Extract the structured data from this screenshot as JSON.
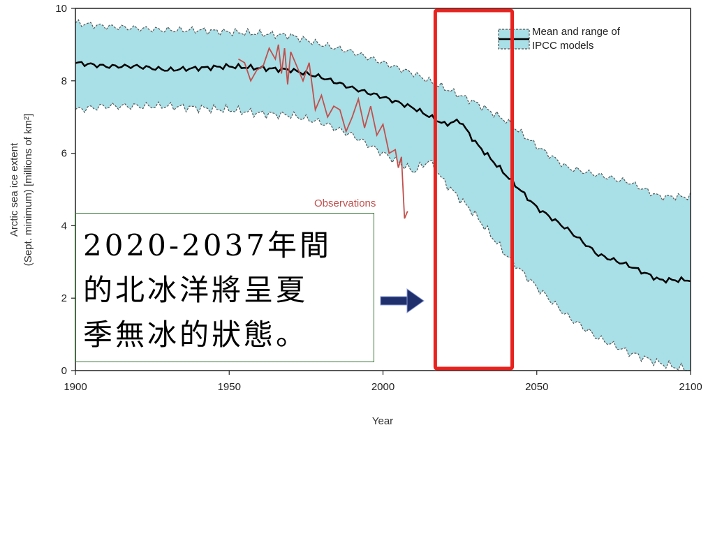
{
  "chart_data": {
    "type": "line",
    "ylabel_line1": "Arctic sea ice extent",
    "ylabel_line2": "(Sept. minimum) [millions of km²]",
    "xlabel": "Year",
    "xlim": [
      1900,
      2100
    ],
    "ylim": [
      0,
      10
    ],
    "x_ticks": [
      "1900",
      "1950",
      "2000",
      "2050",
      "2100"
    ],
    "y_ticks": [
      "0",
      "2",
      "4",
      "6",
      "8",
      "10"
    ],
    "legend": {
      "label_line1": "Mean and range of",
      "label_line2": "IPCC models",
      "position": "top-right"
    },
    "observations_label": "Observations",
    "highlight_range_years": [
      2017,
      2042
    ],
    "series": [
      {
        "name": "Mean and range of IPCC models",
        "role": "model-mean",
        "x": [
          1900,
          1910,
          1920,
          1930,
          1940,
          1950,
          1960,
          1970,
          1980,
          1990,
          2000,
          2010,
          2020,
          2025,
          2030,
          2040,
          2050,
          2060,
          2070,
          2080,
          2090,
          2095,
          2100
        ],
        "values": [
          8.5,
          8.4,
          8.4,
          8.3,
          8.35,
          8.4,
          8.35,
          8.3,
          8.1,
          7.8,
          7.55,
          7.25,
          6.8,
          6.9,
          6.3,
          5.4,
          4.5,
          3.9,
          3.2,
          2.9,
          2.5,
          2.5,
          2.5
        ]
      },
      {
        "role": "model-upper",
        "x": [
          1900,
          1910,
          1920,
          1930,
          1940,
          1950,
          1960,
          1970,
          1980,
          1990,
          2000,
          2010,
          2020,
          2030,
          2040,
          2050,
          2060,
          2070,
          2080,
          2090,
          2100
        ],
        "values": [
          9.6,
          9.5,
          9.45,
          9.4,
          9.4,
          9.35,
          9.3,
          9.25,
          9.0,
          8.8,
          8.5,
          8.2,
          7.8,
          7.4,
          6.9,
          6.2,
          5.6,
          5.4,
          5.2,
          4.8,
          4.8
        ]
      },
      {
        "role": "model-lower",
        "x": [
          1900,
          1910,
          1920,
          1930,
          1940,
          1950,
          1960,
          1970,
          1980,
          1990,
          2000,
          2010,
          2015,
          2020,
          2030,
          2040,
          2050,
          2060,
          2070,
          2080,
          2090,
          2100
        ],
        "values": [
          7.2,
          7.3,
          7.3,
          7.3,
          7.25,
          7.2,
          7.1,
          7.05,
          6.85,
          6.5,
          6.0,
          5.5,
          5.8,
          5.2,
          4.3,
          3.2,
          2.3,
          1.5,
          0.9,
          0.5,
          0.2,
          0.0
        ]
      },
      {
        "name": "Observations",
        "role": "observations",
        "x": [
          1953,
          1955,
          1957,
          1959,
          1961,
          1963,
          1965,
          1966,
          1967,
          1968,
          1969,
          1970,
          1972,
          1974,
          1976,
          1978,
          1980,
          1982,
          1984,
          1986,
          1988,
          1990,
          1992,
          1994,
          1996,
          1998,
          2000,
          2002,
          2004,
          2005,
          2006,
          2007,
          2008
        ],
        "values": [
          8.6,
          8.5,
          8.0,
          8.3,
          8.4,
          8.9,
          8.6,
          9.0,
          8.2,
          8.9,
          7.9,
          8.8,
          8.4,
          8.0,
          8.5,
          7.2,
          7.6,
          7.0,
          7.3,
          7.2,
          6.6,
          7.0,
          7.5,
          6.7,
          7.3,
          6.5,
          6.8,
          6.0,
          6.1,
          5.6,
          5.9,
          4.2,
          4.4
        ]
      }
    ]
  },
  "annotation": {
    "text_lines": [
      "2020-2037年間",
      "的北冰洋將呈夏",
      "季無冰的狀態。"
    ]
  },
  "colors": {
    "band_fill": "#a9dfe6",
    "band_edge": "#555555",
    "mean_line": "#000000",
    "observations": "#c0504d",
    "highlight_box": "#e8221e",
    "arrow": "#1f2f6e"
  }
}
